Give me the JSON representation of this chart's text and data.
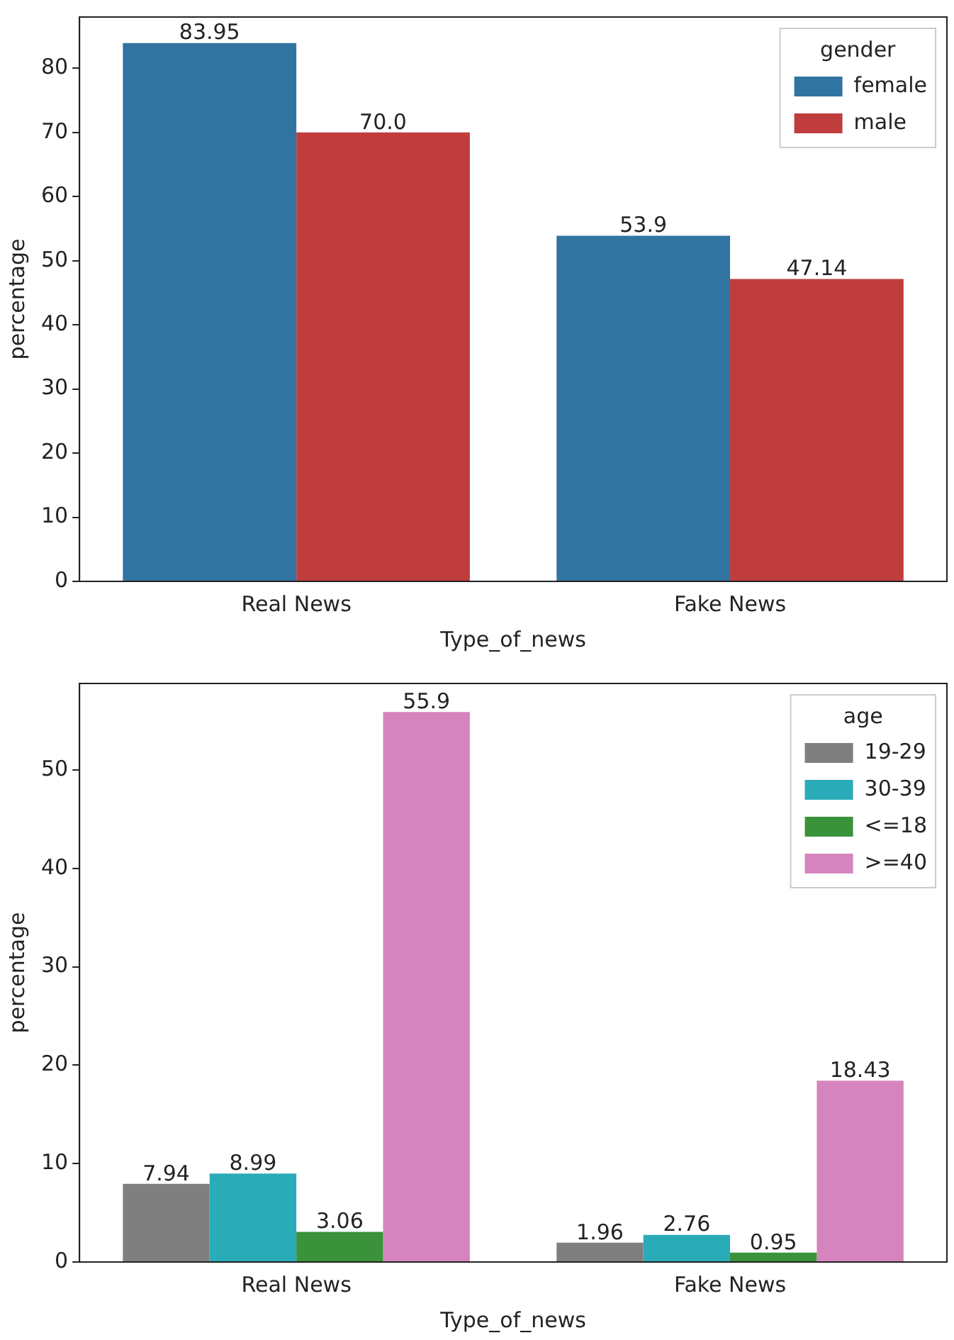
{
  "chart_data": [
    {
      "type": "bar",
      "xlabel": "Type_of_news",
      "ylabel": "percentage",
      "legend_title": "gender",
      "categories": [
        "Real News",
        "Fake News"
      ],
      "ylim": [
        0,
        88
      ],
      "yticks": [
        0,
        10,
        20,
        30,
        40,
        50,
        60,
        70,
        80
      ],
      "grid": false,
      "legend": "top right",
      "series": [
        {
          "name": "female",
          "color": "#3274a1",
          "values": [
            83.95,
            53.9
          ],
          "value_labels": [
            "83.95",
            "53.9"
          ]
        },
        {
          "name": "male",
          "color": "#c03d3e",
          "values": [
            70.0,
            47.14
          ],
          "value_labels": [
            "70.0",
            "47.14"
          ]
        }
      ]
    },
    {
      "type": "bar",
      "xlabel": "Type_of_news",
      "ylabel": "percentage",
      "legend_title": "age",
      "categories": [
        "Real News",
        "Fake News"
      ],
      "ylim": [
        0,
        58.8
      ],
      "yticks": [
        0,
        10,
        20,
        30,
        40,
        50
      ],
      "grid": false,
      "legend": "top right",
      "series": [
        {
          "name": "19-29",
          "color": "#7f7f7f",
          "values": [
            7.94,
            1.96
          ],
          "value_labels": [
            "7.94",
            "1.96"
          ]
        },
        {
          "name": "30-39",
          "color": "#2aabb8",
          "values": [
            8.99,
            2.76
          ],
          "value_labels": [
            "8.99",
            "2.76"
          ]
        },
        {
          "name": "<=18",
          "color": "#3a923a",
          "values": [
            3.06,
            0.95
          ],
          "value_labels": [
            "3.06",
            "0.95"
          ]
        },
        {
          "name": ">=40",
          "color": "#d684bd",
          "values": [
            55.9,
            18.43
          ],
          "value_labels": [
            "55.9",
            "18.43"
          ]
        }
      ]
    }
  ]
}
